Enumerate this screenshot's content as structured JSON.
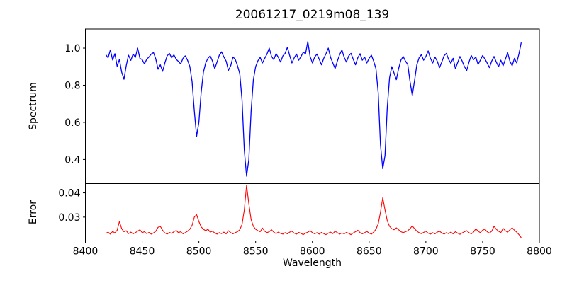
{
  "figure": {
    "title": "20061217_0219m08_139",
    "xlabel": "Wavelength",
    "background": "#ffffff",
    "axis_color": "#000000"
  },
  "chart_data": [
    {
      "type": "line",
      "title": "20061217_0219m08_139",
      "ylabel": "Spectrum",
      "legend": "none",
      "grid": false,
      "line_color": "#0000ff",
      "xlim": [
        8400,
        8800
      ],
      "ylim": [
        0.27,
        1.103
      ],
      "yticks": [
        0.4,
        0.6,
        0.8,
        1.0
      ],
      "ytick_labels": [
        "0.4",
        "0.6",
        "0.8",
        "1.0"
      ],
      "x_start": 8418,
      "x_step": 2,
      "values": [
        0.965,
        0.948,
        0.99,
        0.936,
        0.97,
        0.902,
        0.94,
        0.87,
        0.832,
        0.905,
        0.962,
        0.934,
        0.968,
        0.95,
        1.0,
        0.945,
        0.938,
        0.915,
        0.94,
        0.952,
        0.968,
        0.976,
        0.942,
        0.886,
        0.91,
        0.875,
        0.92,
        0.958,
        0.972,
        0.948,
        0.964,
        0.94,
        0.928,
        0.915,
        0.945,
        0.958,
        0.935,
        0.902,
        0.82,
        0.66,
        0.525,
        0.6,
        0.76,
        0.87,
        0.92,
        0.945,
        0.958,
        0.93,
        0.89,
        0.925,
        0.962,
        0.98,
        0.952,
        0.93,
        0.88,
        0.905,
        0.952,
        0.94,
        0.905,
        0.862,
        0.72,
        0.45,
        0.31,
        0.4,
        0.66,
        0.83,
        0.9,
        0.932,
        0.95,
        0.92,
        0.945,
        0.968,
        1.0,
        0.955,
        0.938,
        0.97,
        0.95,
        0.925,
        0.958,
        0.972,
        1.005,
        0.96,
        0.92,
        0.948,
        0.968,
        0.935,
        0.955,
        0.978,
        0.97,
        1.035,
        0.955,
        0.92,
        0.952,
        0.968,
        0.94,
        0.91,
        0.945,
        0.97,
        1.0,
        0.95,
        0.92,
        0.89,
        0.93,
        0.965,
        0.99,
        0.95,
        0.925,
        0.958,
        0.972,
        0.94,
        0.91,
        0.948,
        0.97,
        0.935,
        0.952,
        0.92,
        0.945,
        0.962,
        0.93,
        0.89,
        0.76,
        0.48,
        0.35,
        0.42,
        0.68,
        0.84,
        0.9,
        0.865,
        0.83,
        0.89,
        0.935,
        0.955,
        0.93,
        0.912,
        0.82,
        0.745,
        0.825,
        0.91,
        0.948,
        0.965,
        0.935,
        0.955,
        0.985,
        0.945,
        0.92,
        0.952,
        0.93,
        0.895,
        0.925,
        0.958,
        0.972,
        0.94,
        0.918,
        0.945,
        0.89,
        0.922,
        0.955,
        0.93,
        0.9,
        0.88,
        0.925,
        0.96,
        0.938,
        0.952,
        0.912,
        0.935,
        0.96,
        0.942,
        0.92,
        0.895,
        0.93,
        0.955,
        0.925,
        0.9,
        0.935,
        0.905,
        0.94,
        0.975,
        0.93,
        0.905,
        0.945,
        0.92,
        0.97,
        1.03
      ]
    },
    {
      "type": "line",
      "ylabel": "Error",
      "xlabel": "Wavelength",
      "legend": "none",
      "grid": false,
      "line_color": "#ff0000",
      "xlim": [
        8400,
        8800
      ],
      "ylim": [
        0.0202,
        0.0438
      ],
      "yticks": [
        0.03,
        0.04
      ],
      "ytick_labels": [
        "0.03",
        "0.04"
      ],
      "xticks": [
        8400,
        8450,
        8500,
        8550,
        8600,
        8650,
        8700,
        8750,
        8800
      ],
      "xtick_labels": [
        "8400",
        "8450",
        "8500",
        "8550",
        "8600",
        "8650",
        "8700",
        "8750",
        "8800"
      ],
      "x_start": 8418,
      "x_step": 2,
      "values": [
        0.0233,
        0.0238,
        0.023,
        0.0241,
        0.0235,
        0.0246,
        0.0282,
        0.0252,
        0.024,
        0.0244,
        0.0232,
        0.0238,
        0.0231,
        0.0236,
        0.0242,
        0.0248,
        0.0236,
        0.024,
        0.0232,
        0.0237,
        0.023,
        0.0235,
        0.0242,
        0.0258,
        0.0262,
        0.0246,
        0.0235,
        0.023,
        0.0237,
        0.0233,
        0.024,
        0.0245,
        0.0236,
        0.024,
        0.0231,
        0.0236,
        0.0242,
        0.025,
        0.0266,
        0.03,
        0.031,
        0.0282,
        0.026,
        0.025,
        0.0244,
        0.025,
        0.0238,
        0.0242,
        0.0235,
        0.023,
        0.0236,
        0.0232,
        0.0238,
        0.0231,
        0.0244,
        0.0236,
        0.0231,
        0.0236,
        0.024,
        0.0248,
        0.027,
        0.033,
        0.0432,
        0.0355,
        0.029,
        0.0262,
        0.025,
        0.0244,
        0.024,
        0.0255,
        0.0242,
        0.0236,
        0.024,
        0.0248,
        0.0238,
        0.0232,
        0.0238,
        0.0233,
        0.023,
        0.0236,
        0.0231,
        0.0238,
        0.0242,
        0.0234,
        0.023,
        0.0237,
        0.0233,
        0.0228,
        0.0234,
        0.0238,
        0.0244,
        0.0236,
        0.0231,
        0.0236,
        0.023,
        0.0237,
        0.0232,
        0.0228,
        0.0234,
        0.0238,
        0.0232,
        0.0242,
        0.0236,
        0.023,
        0.0235,
        0.0231,
        0.0237,
        0.0233,
        0.0228,
        0.0235,
        0.024,
        0.0246,
        0.0236,
        0.0231,
        0.0236,
        0.0241,
        0.0234,
        0.023,
        0.0238,
        0.025,
        0.0272,
        0.032,
        0.038,
        0.033,
        0.0285,
        0.0262,
        0.0252,
        0.0248,
        0.0256,
        0.0248,
        0.024,
        0.0236,
        0.024,
        0.0244,
        0.0252,
        0.0264,
        0.0252,
        0.0242,
        0.0236,
        0.0232,
        0.0237,
        0.0242,
        0.0234,
        0.023,
        0.0236,
        0.0231,
        0.0238,
        0.0242,
        0.0235,
        0.023,
        0.0236,
        0.0232,
        0.0238,
        0.0231,
        0.024,
        0.0234,
        0.0229,
        0.0235,
        0.024,
        0.0244,
        0.0236,
        0.0231,
        0.0238,
        0.0252,
        0.0242,
        0.0236,
        0.0246,
        0.025,
        0.024,
        0.0234,
        0.0242,
        0.0262,
        0.025,
        0.0242,
        0.0236,
        0.0254,
        0.0244,
        0.0238,
        0.0248,
        0.0256,
        0.0246,
        0.0238,
        0.0228,
        0.0215
      ]
    }
  ]
}
